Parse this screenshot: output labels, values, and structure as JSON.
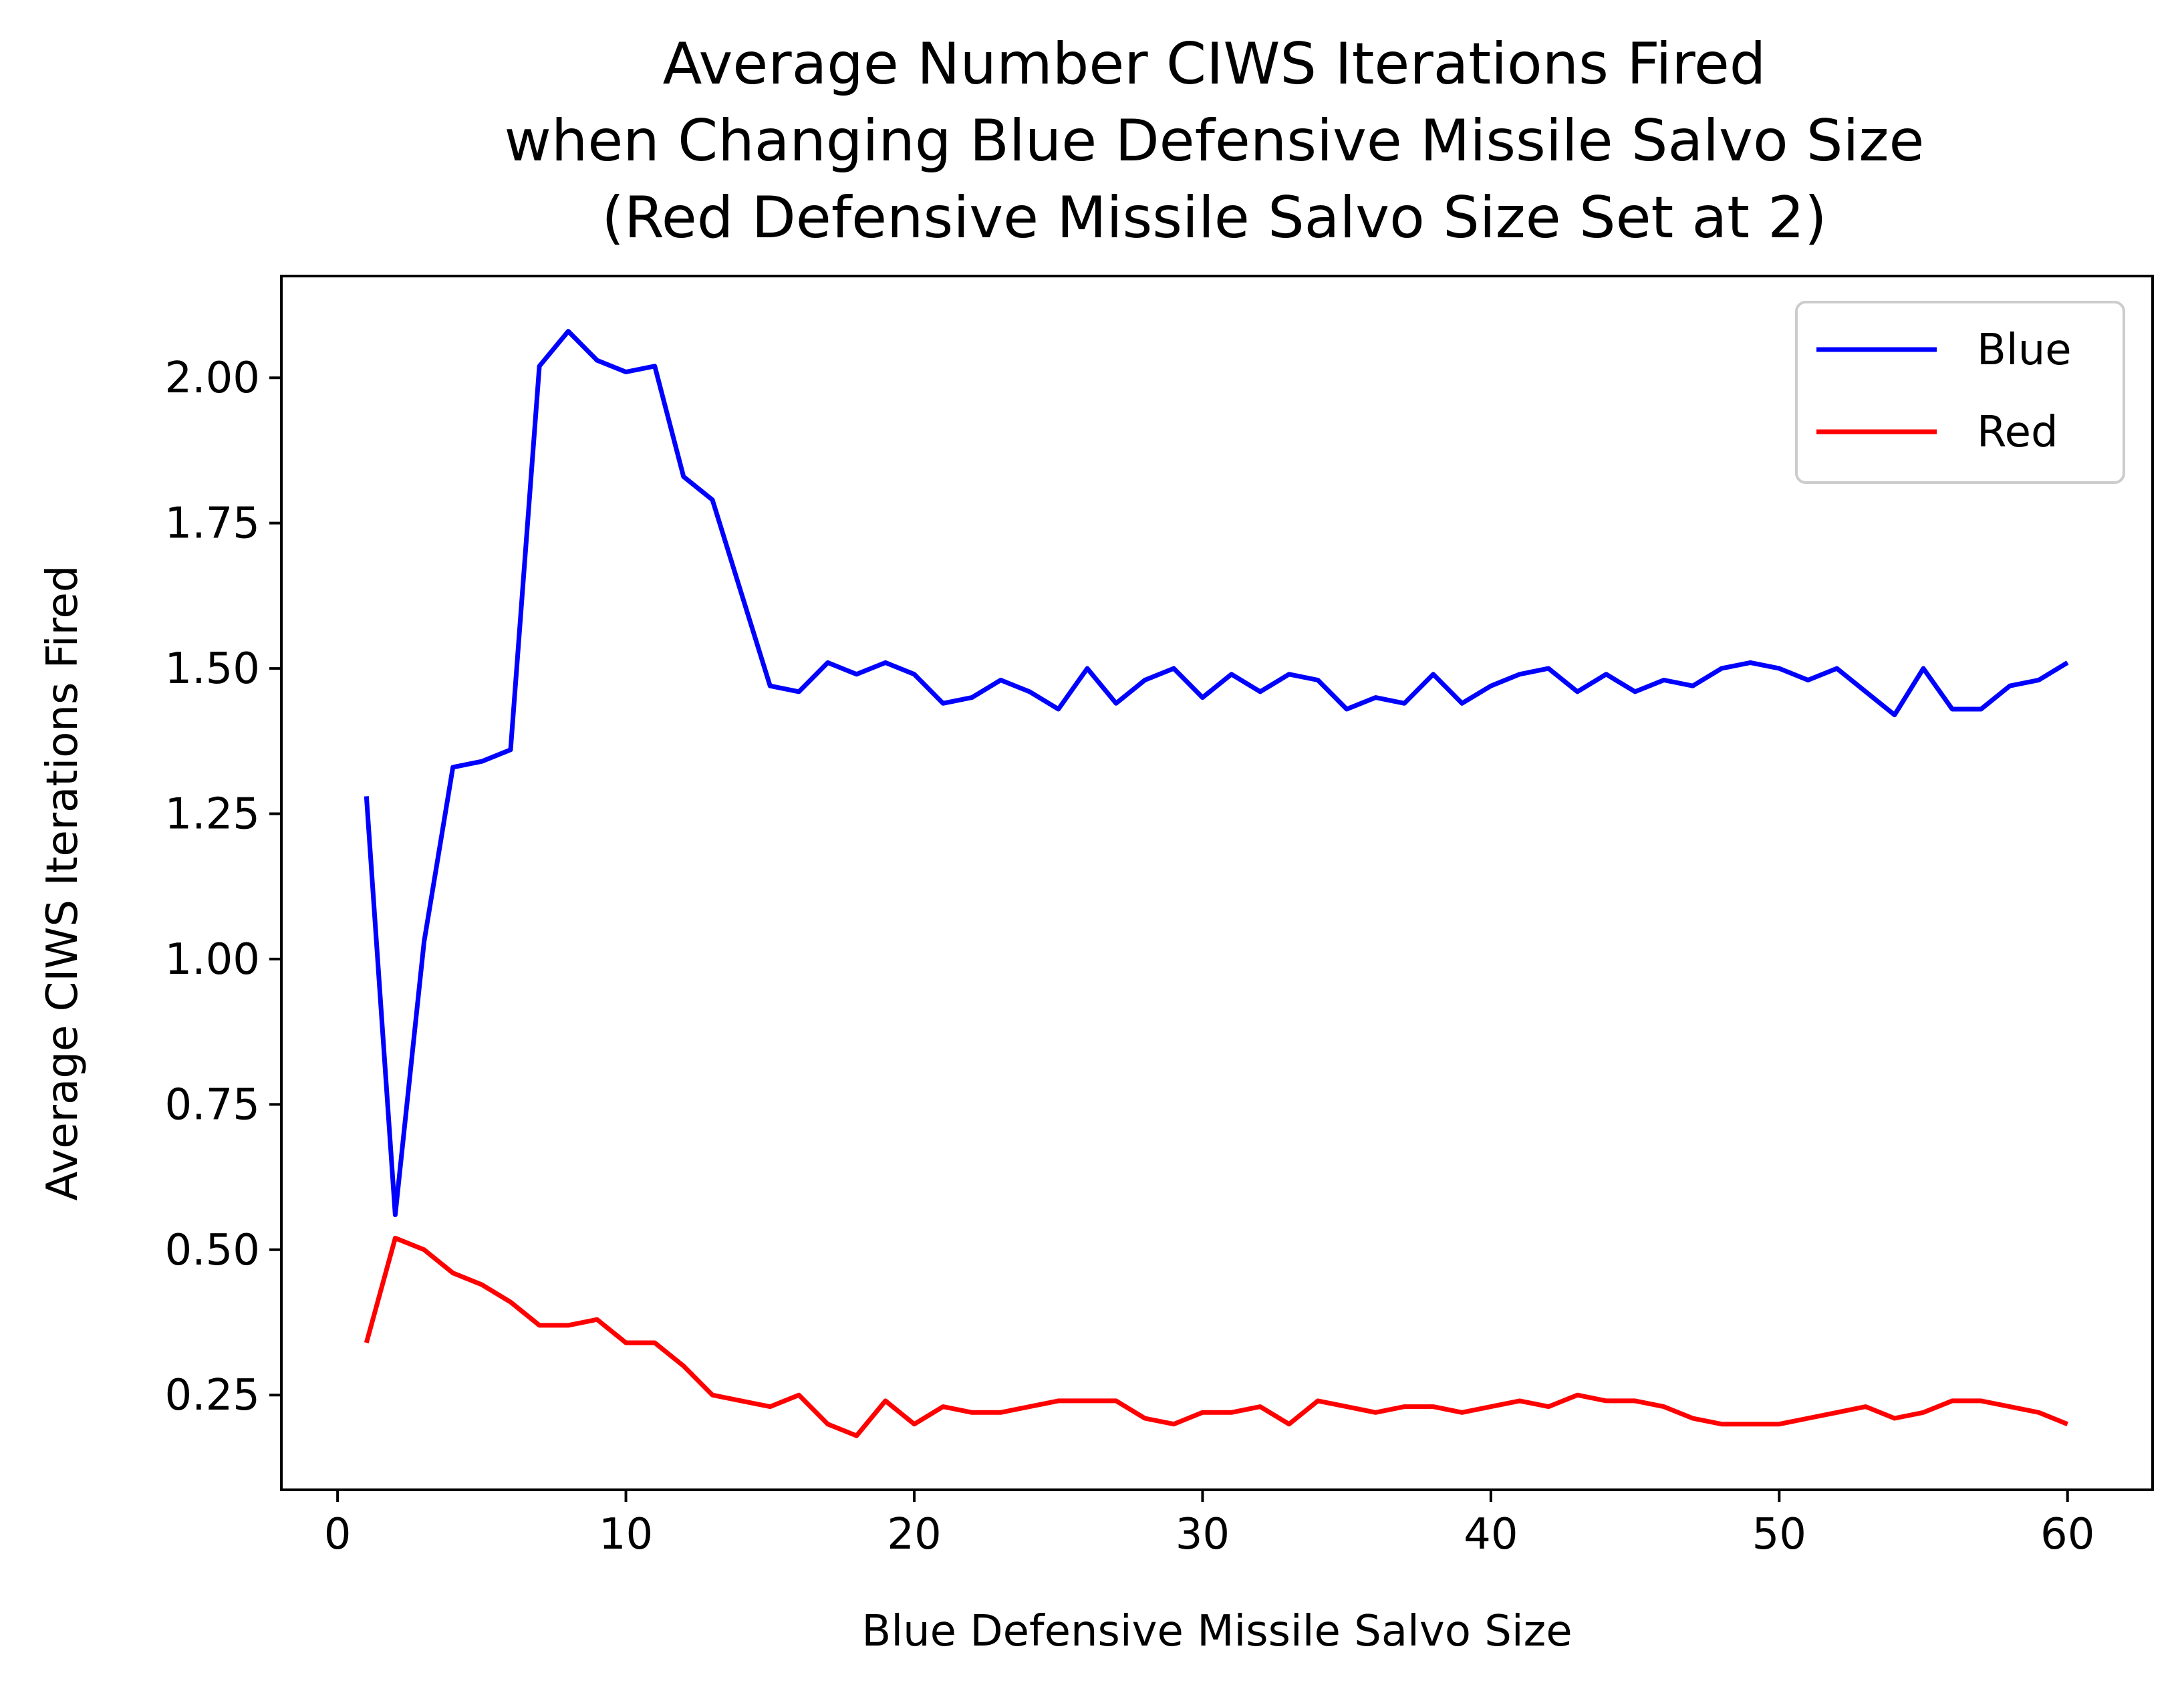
{
  "chart_data": {
    "type": "line",
    "title": [
      "Average Number CIWS Iterations Fired",
      "when Changing Blue Defensive Missile Salvo Size",
      "(Red Defensive Missile Salvo Size Set at 2)"
    ],
    "xlabel": "Blue Defensive Missile Salvo Size",
    "ylabel": "Average CIWS Iterations Fired",
    "xlim": [
      -1.95,
      62.95
    ],
    "ylim": [
      0.087,
      2.175
    ],
    "xticks": [
      0,
      10,
      20,
      30,
      40,
      50,
      60
    ],
    "xtick_labels": [
      "0",
      "10",
      "20",
      "30",
      "40",
      "50",
      "60"
    ],
    "yticks": [
      0.25,
      0.5,
      0.75,
      1.0,
      1.25,
      1.5,
      1.75,
      2.0
    ],
    "ytick_labels": [
      "0.25",
      "0.50",
      "0.75",
      "1.00",
      "1.25",
      "1.50",
      "1.75",
      "2.00"
    ],
    "grid": false,
    "legend_position": "top-right",
    "x": [
      1,
      2,
      3,
      4,
      5,
      6,
      7,
      8,
      9,
      10,
      11,
      12,
      13,
      14,
      15,
      16,
      17,
      18,
      19,
      20,
      21,
      22,
      23,
      24,
      25,
      26,
      27,
      28,
      29,
      30,
      31,
      32,
      33,
      34,
      35,
      36,
      37,
      38,
      39,
      40,
      41,
      42,
      43,
      44,
      45,
      46,
      47,
      48,
      49,
      50,
      51,
      52,
      53,
      54,
      55,
      56,
      57,
      58,
      59,
      60
    ],
    "series": [
      {
        "name": "Blue",
        "color": "#0000ff",
        "values": [
          1.28,
          0.56,
          1.03,
          1.33,
          1.34,
          1.36,
          2.02,
          2.08,
          2.03,
          2.01,
          2.02,
          1.83,
          1.79,
          1.63,
          1.47,
          1.46,
          1.51,
          1.49,
          1.51,
          1.49,
          1.44,
          1.45,
          1.48,
          1.46,
          1.43,
          1.5,
          1.44,
          1.48,
          1.5,
          1.45,
          1.49,
          1.46,
          1.49,
          1.48,
          1.43,
          1.45,
          1.44,
          1.49,
          1.44,
          1.47,
          1.49,
          1.5,
          1.46,
          1.49,
          1.46,
          1.48,
          1.47,
          1.5,
          1.51,
          1.5,
          1.48,
          1.5,
          1.46,
          1.42,
          1.5,
          1.43,
          1.43,
          1.47,
          1.48,
          1.51
        ]
      },
      {
        "name": "Red",
        "color": "#ff0000",
        "values": [
          0.34,
          0.52,
          0.5,
          0.46,
          0.44,
          0.41,
          0.37,
          0.37,
          0.38,
          0.34,
          0.34,
          0.3,
          0.25,
          0.24,
          0.23,
          0.25,
          0.2,
          0.18,
          0.24,
          0.2,
          0.23,
          0.22,
          0.22,
          0.23,
          0.24,
          0.24,
          0.24,
          0.21,
          0.2,
          0.22,
          0.22,
          0.23,
          0.2,
          0.24,
          0.23,
          0.22,
          0.23,
          0.23,
          0.22,
          0.23,
          0.24,
          0.23,
          0.25,
          0.24,
          0.24,
          0.23,
          0.21,
          0.2,
          0.2,
          0.2,
          0.21,
          0.22,
          0.23,
          0.21,
          0.22,
          0.24,
          0.24,
          0.23,
          0.22,
          0.2
        ]
      }
    ]
  }
}
